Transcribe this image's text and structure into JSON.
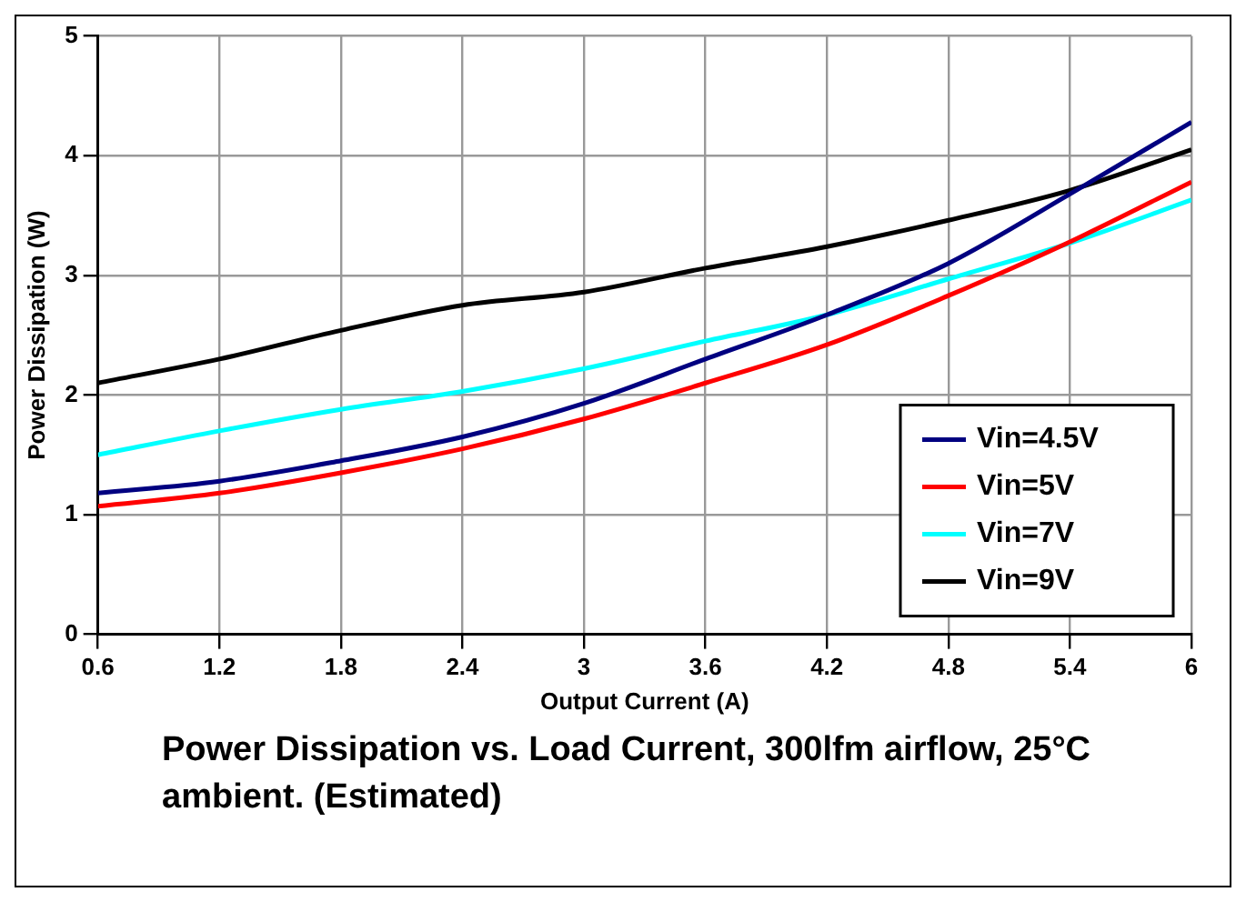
{
  "chart_data": {
    "type": "line",
    "xlabel": "Output Current (A)",
    "ylabel": "Power Dissipation (W)",
    "x": [
      0.6,
      1.2,
      1.8,
      2.4,
      3.0,
      3.6,
      4.2,
      4.8,
      5.4,
      6.0
    ],
    "series": [
      {
        "name": "Vin=4.5V",
        "color": "#000080",
        "values": [
          1.18,
          1.28,
          1.45,
          1.65,
          1.93,
          2.3,
          2.67,
          3.1,
          3.68,
          4.28
        ]
      },
      {
        "name": "Vin=5V",
        "color": "#ff0000",
        "values": [
          1.07,
          1.18,
          1.35,
          1.55,
          1.8,
          2.1,
          2.42,
          2.83,
          3.28,
          3.78
        ]
      },
      {
        "name": "Vin=7V",
        "color": "#00ffff",
        "values": [
          1.5,
          1.7,
          1.88,
          2.03,
          2.22,
          2.45,
          2.67,
          2.97,
          3.27,
          3.63
        ]
      },
      {
        "name": "Vin=9V",
        "color": "#000000",
        "values": [
          2.1,
          2.3,
          2.54,
          2.75,
          2.86,
          3.06,
          3.24,
          3.46,
          3.71,
          4.05
        ]
      }
    ],
    "xlim": [
      0.6,
      6
    ],
    "xticks": [
      0.6,
      1.2,
      1.8,
      2.4,
      3,
      3.6,
      4.2,
      4.8,
      5.4,
      6
    ],
    "ylim": [
      0,
      5
    ],
    "yticks": [
      0,
      1,
      2,
      3,
      4,
      5
    ],
    "grid": true,
    "legend": "bottom right",
    "marker": "none",
    "line_style": "solid",
    "annotations": [
      "Power Dissipation vs. Load Current, 300lfm airflow, 25°C ambient. (Estimated)"
    ]
  }
}
